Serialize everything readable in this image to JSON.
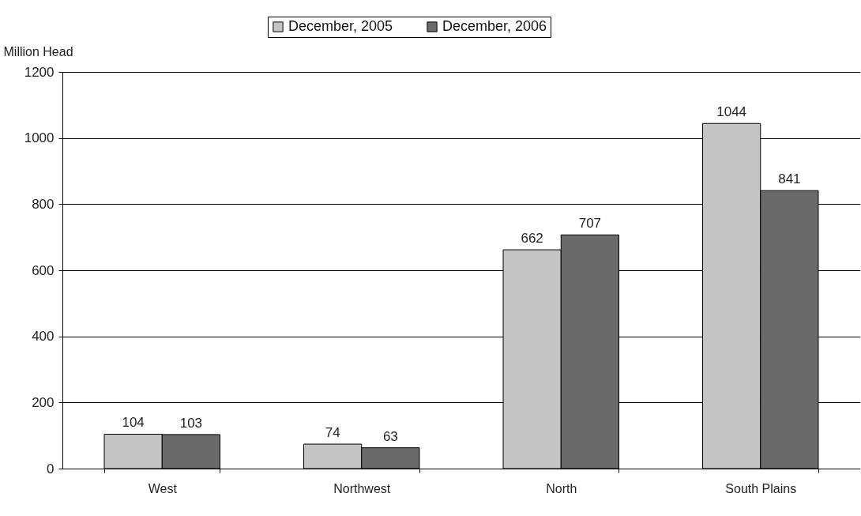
{
  "chart_data": {
    "type": "bar",
    "ylabel": "Million Head",
    "categories": [
      "West",
      "Northwest",
      "North",
      "South Plains"
    ],
    "series": [
      {
        "name": "December, 2005",
        "color": "#c4c4c4",
        "values": [
          104,
          74,
          662,
          1044
        ]
      },
      {
        "name": "December, 2006",
        "color": "#6a6a6a",
        "values": [
          103,
          63,
          707,
          841
        ]
      }
    ],
    "ylim": [
      0,
      1200
    ],
    "yticks": [
      0,
      200,
      400,
      600,
      800,
      1000,
      1200
    ],
    "grid": "y",
    "legend": "top",
    "data_labels": true
  }
}
